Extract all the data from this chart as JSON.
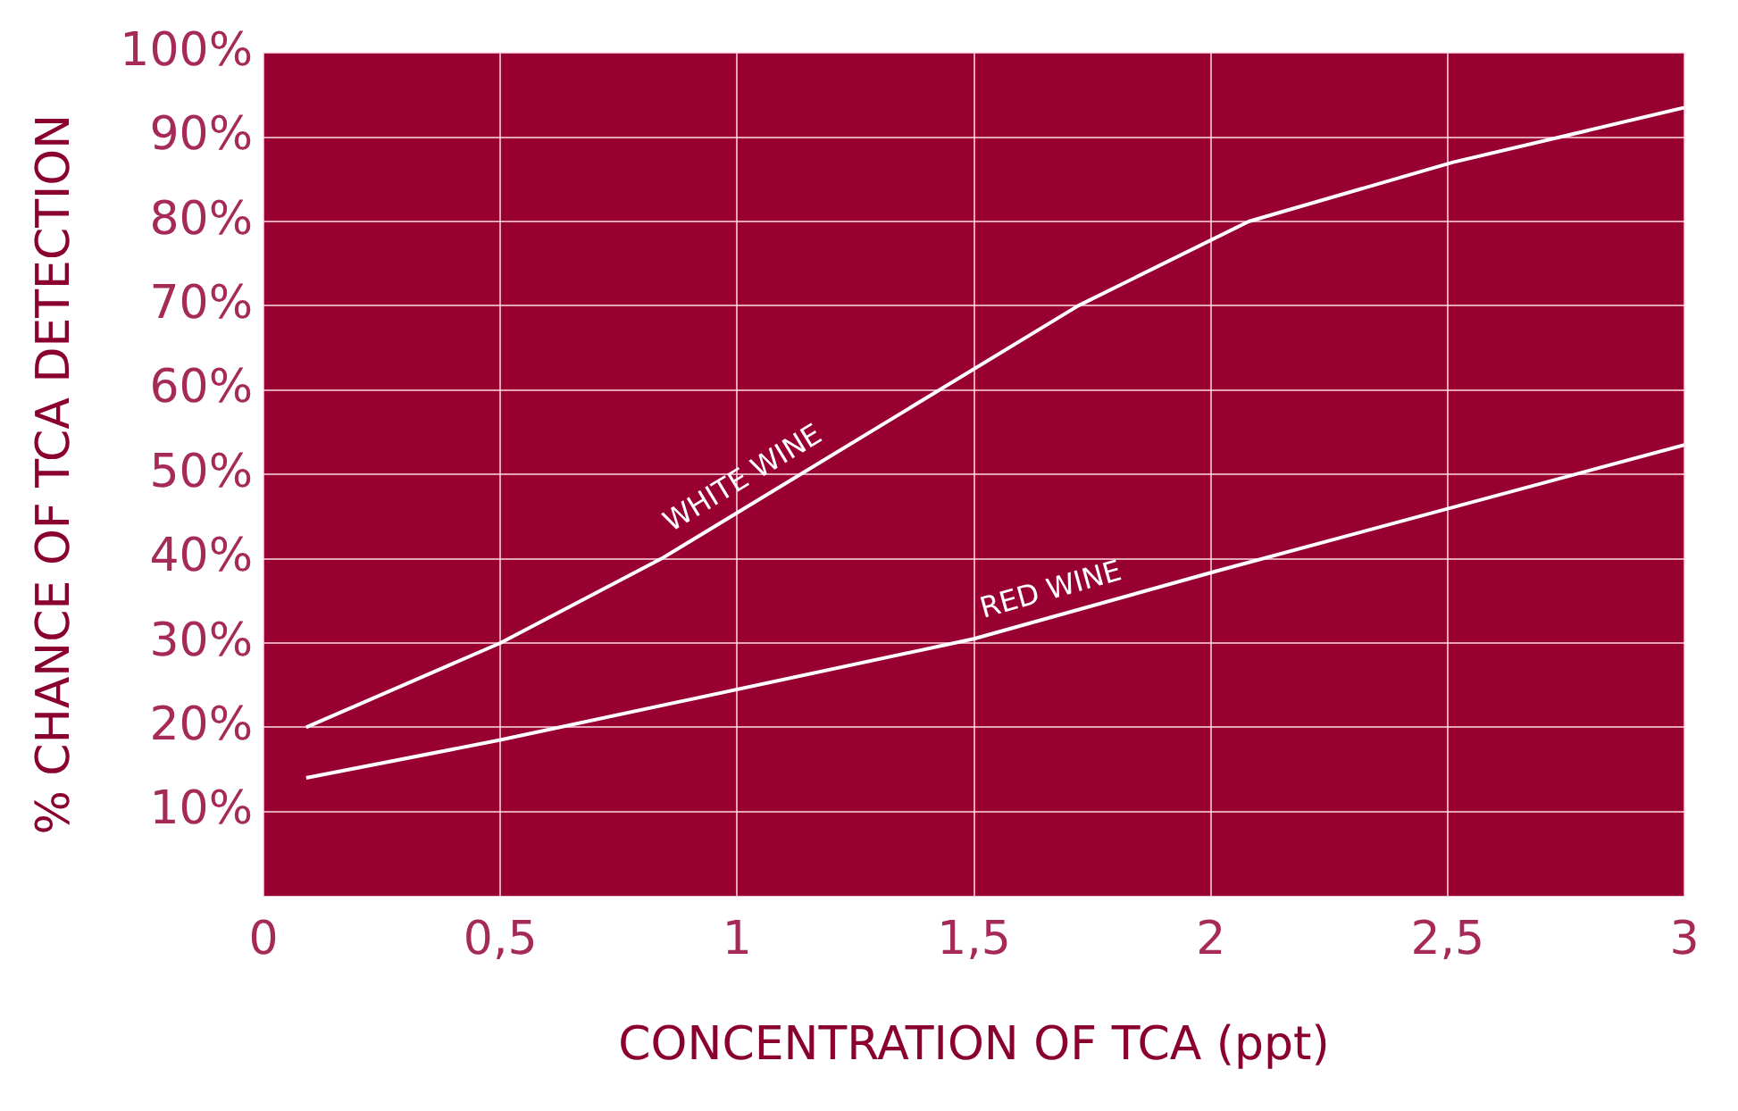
{
  "chart_data": {
    "type": "line",
    "xlabel": "CONCENTRATION OF TCA (ppt)",
    "ylabel": "% CHANCE OF TCA DETECTION",
    "series": [
      {
        "name": "WHITE WINE",
        "color": "#ffffff",
        "x": [
          0.09,
          0.5,
          0.84,
          1.72,
          2.08,
          2.51,
          3
        ],
        "values": [
          20,
          30,
          40,
          70,
          80,
          87,
          93.5
        ]
      },
      {
        "name": "RED WINE",
        "color": "#ffffff",
        "x": [
          0.09,
          0.5,
          1.5,
          2.01,
          3
        ],
        "values": [
          14,
          18.5,
          30.5,
          38.5,
          53.5
        ]
      }
    ],
    "xlim": [
      0,
      3
    ],
    "xticks": [
      0,
      {
        "value": 0.5,
        "label": "0,5"
      },
      1,
      {
        "value": 1.5,
        "label": "1,5"
      },
      2,
      {
        "value": 2.5,
        "label": "2,5"
      },
      3
    ],
    "ylim": [
      0,
      100
    ],
    "yticks": [
      {
        "value": 10,
        "label": "10%"
      },
      {
        "value": 20,
        "label": "20%"
      },
      {
        "value": 30,
        "label": "30%"
      },
      {
        "value": 40,
        "label": "40%"
      },
      {
        "value": 50,
        "label": "50%"
      },
      {
        "value": 60,
        "label": "60%"
      },
      {
        "value": 70,
        "label": "70%"
      },
      {
        "value": 80,
        "label": "80%"
      },
      {
        "value": 90,
        "label": "90%"
      },
      {
        "value": 100,
        "label": "100%"
      }
    ],
    "grid": true,
    "legend": false,
    "marker": "none",
    "line_style": "solid"
  }
}
